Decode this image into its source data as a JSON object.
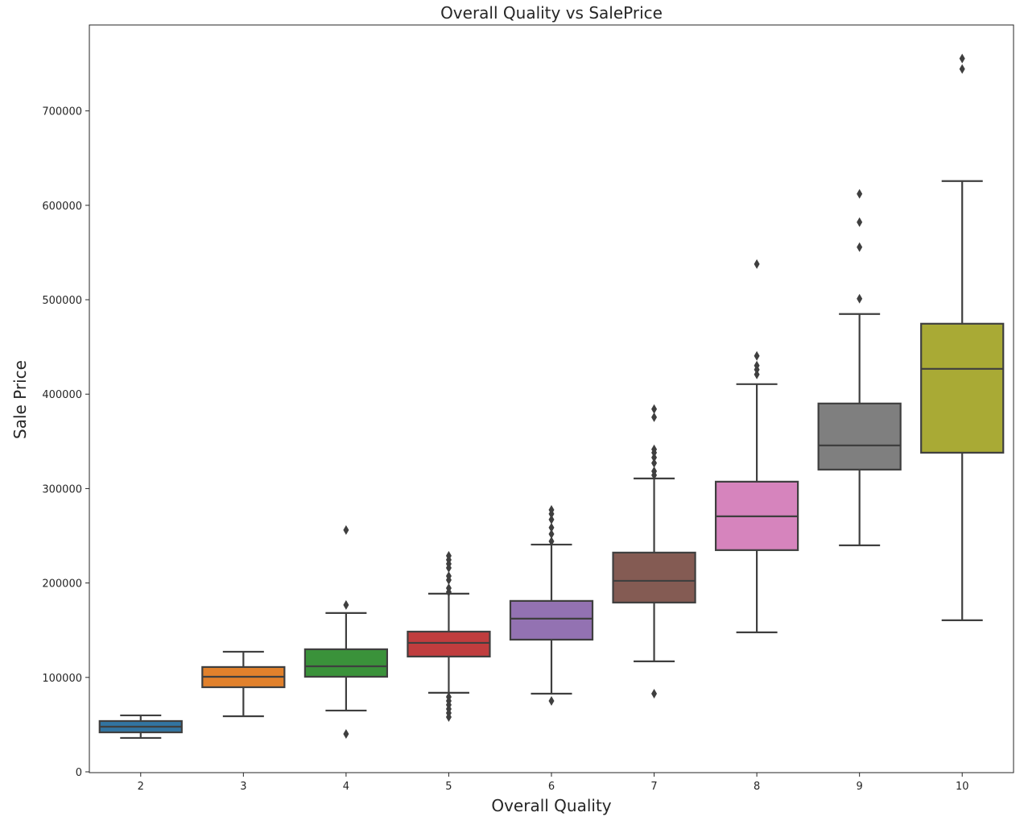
{
  "chart_data": {
    "type": "box",
    "title": "Overall Quality vs SalePrice",
    "xlabel": "Overall Quality",
    "ylabel": "Sale Price",
    "ylim": [
      0,
      791000
    ],
    "yticks": [
      0,
      100000,
      200000,
      300000,
      400000,
      500000,
      600000,
      700000
    ],
    "grid": false,
    "categories": [
      "2",
      "3",
      "4",
      "5",
      "6",
      "7",
      "8",
      "9",
      "10"
    ],
    "colors": [
      "#3274a1",
      "#e1812c",
      "#3a923a",
      "#c03d3e",
      "#9372b2",
      "#845b53",
      "#d684bd",
      "#7f7f7f",
      "#a9aa35"
    ],
    "line_color": "#3f3f3f",
    "boxes": [
      {
        "whislo": 35900,
        "q1": 41800,
        "med": 47800,
        "q3": 53800,
        "whishi": 59800,
        "fliers": []
      },
      {
        "whislo": 58900,
        "q1": 89600,
        "med": 100700,
        "q3": 111000,
        "whishi": 127200,
        "fliers": []
      },
      {
        "whislo": 64900,
        "q1": 100700,
        "med": 111800,
        "q3": 129800,
        "whishi": 168200,
        "fliers": [
          40100,
          176700,
          256100
        ]
      },
      {
        "whislo": 83700,
        "q1": 122100,
        "med": 136600,
        "q3": 148500,
        "whishi": 188700,
        "fliers": [
          79400,
          75100,
          70900,
          66600,
          62300,
          58000,
          228800,
          224500,
          220300,
          216000,
          207400,
          203200,
          194600,
          190400
        ]
      },
      {
        "whislo": 82800,
        "q1": 140000,
        "med": 162200,
        "q3": 181000,
        "whishi": 240700,
        "fliers": [
          75100,
          244200,
          251800,
          258700,
          267200,
          273200,
          277400
        ]
      },
      {
        "whislo": 117000,
        "q1": 179300,
        "med": 202300,
        "q3": 232200,
        "whishi": 310700,
        "fliers": [
          82800,
          314200,
          318400,
          327000,
          332900,
          338000,
          341500,
          375600,
          384200
        ]
      },
      {
        "whislo": 147700,
        "q1": 234800,
        "med": 270600,
        "q3": 307300,
        "whishi": 410600,
        "fliers": [
          420900,
          426000,
          430300,
          440500,
          537800
        ]
      },
      {
        "whislo": 239900,
        "q1": 320100,
        "med": 345700,
        "q3": 390100,
        "whishi": 484900,
        "fliers": [
          501100,
          555700,
          582200,
          612100
        ]
      },
      {
        "whislo": 160500,
        "q1": 338000,
        "med": 426800,
        "q3": 474600,
        "whishi": 625700,
        "fliers": [
          744400,
          755500
        ]
      }
    ]
  }
}
